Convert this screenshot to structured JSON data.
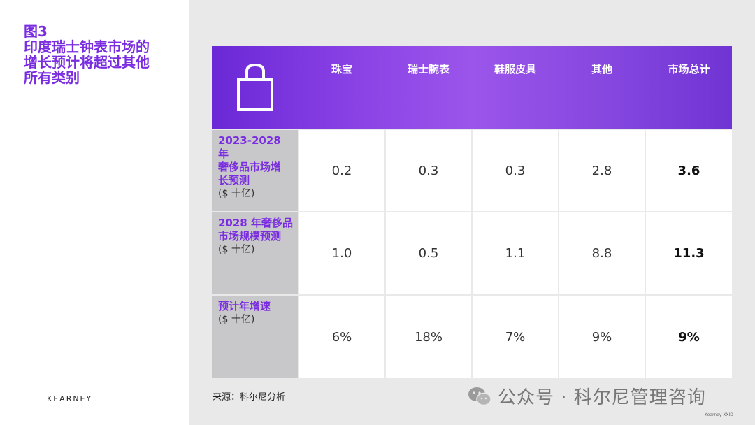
{
  "figure": {
    "label": "图3",
    "title_lines": [
      "印度瑞士钟表市场的",
      "增长预计将超过其他",
      "所有类别"
    ]
  },
  "brand": "KEARNEY",
  "table": {
    "icon": "shopping-bag-icon",
    "columns": [
      "珠宝",
      "瑞士腕表",
      "鞋服皮具",
      "其他",
      "市场总计"
    ],
    "rows": [
      {
        "label": "2023-2028 年奢侈品市场增长预测",
        "label_lines": [
          "2023-2028 年",
          "奢侈品市场增",
          "长预测"
        ],
        "unit": "($ 十亿)",
        "values": [
          "0.2",
          "0.3",
          "0.3",
          "2.8",
          "3.6"
        ]
      },
      {
        "label": "2028 年奢侈品市场规模预测",
        "label_lines": [
          "2028 年奢侈品",
          "市场规模预测"
        ],
        "unit": "($ 十亿)",
        "values": [
          "1.0",
          "0.5",
          "1.1",
          "8.8",
          "11.3"
        ]
      },
      {
        "label": "预计年增速",
        "label_lines": [
          "预计年增速"
        ],
        "unit": "($ 十亿)",
        "values": [
          "6%",
          "18%",
          "7%",
          "9%",
          "9%"
        ]
      }
    ]
  },
  "source": "来源：科尔尼分析",
  "watermark": "公众号 · 科尔尼管理咨询",
  "footer_small": "Kearney XXID",
  "colors": {
    "accent": "#7a2de0",
    "header_gradient_start": "#6a28d6",
    "header_gradient_mid": "#9b55ea",
    "label_bg": "#c8c8ca",
    "panel_bg": "#e9e9ea"
  }
}
